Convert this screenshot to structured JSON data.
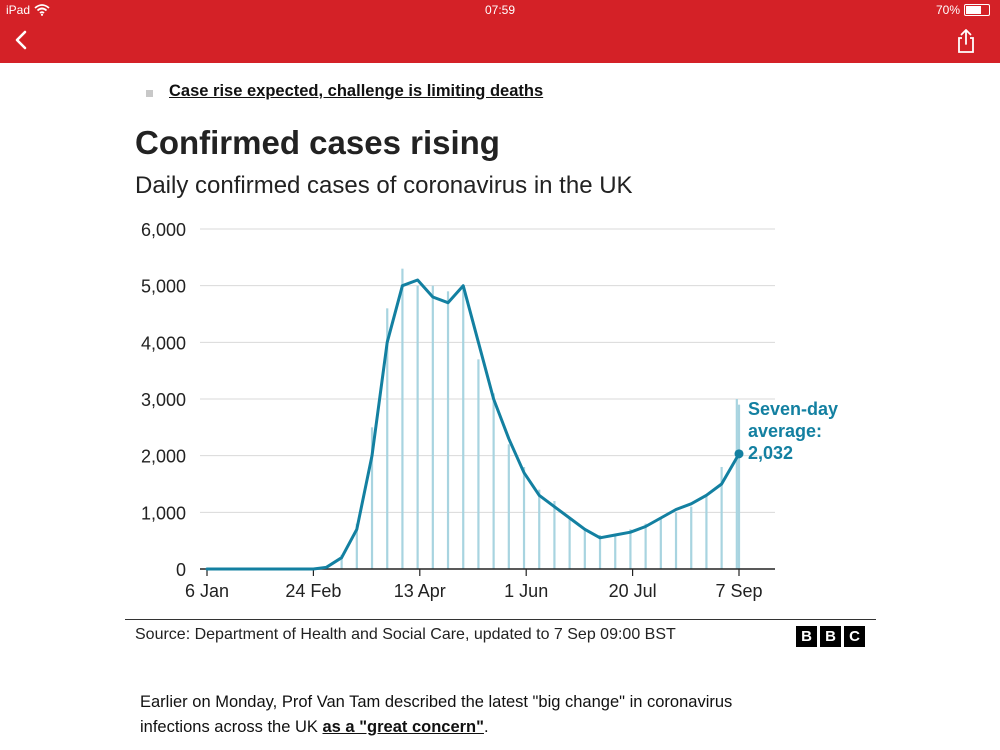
{
  "status_bar": {
    "device": "iPad",
    "time": "07:59",
    "battery": "70%",
    "battery_level": 0.7
  },
  "colors": {
    "nav": "#d42127",
    "series": "#1380a1",
    "bars": "#a8d4e0",
    "grid": "#d9d9d9"
  },
  "nav": {
    "back_icon": "chevron-left-icon",
    "share_icon": "share-icon"
  },
  "bullet_link": "Case rise expected, challenge is limiting deaths",
  "chart": {
    "title": "Confirmed cases rising",
    "subtitle": "Daily confirmed cases of coronavirus in the UK",
    "source": "Source: Department of Health and Social Care, updated to 7 Sep 09:00 BST",
    "annotation": [
      "Seven-day",
      "average:",
      "2,032"
    ]
  },
  "bbc_logo": [
    "B",
    "B",
    "C"
  ],
  "chart_data": {
    "type": "bar",
    "title": "Confirmed cases rising",
    "subtitle": "Daily confirmed cases of coronavirus in the UK",
    "x_ticks": [
      "6 Jan",
      "24 Feb",
      "13 Apr",
      "1 Jun",
      "20 Jul",
      "7 Sep"
    ],
    "x_range": [
      "2020-01-06",
      "2020-09-07"
    ],
    "y_ticks": [
      "0",
      "1,000",
      "2,000",
      "3,000",
      "4,000",
      "5,000",
      "6,000"
    ],
    "ylim": [
      0,
      6000
    ],
    "grid": true,
    "series": [
      {
        "type": "bar",
        "x": [
          "2020-02-24",
          "2020-03-01",
          "2020-03-08",
          "2020-03-15",
          "2020-03-22",
          "2020-03-29",
          "2020-04-05",
          "2020-04-12",
          "2020-04-19",
          "2020-04-26",
          "2020-05-03",
          "2020-05-10",
          "2020-05-17",
          "2020-05-24",
          "2020-05-31",
          "2020-06-07",
          "2020-06-14",
          "2020-06-21",
          "2020-06-28",
          "2020-07-05",
          "2020-07-12",
          "2020-07-19",
          "2020-07-26",
          "2020-08-02",
          "2020-08-09",
          "2020-08-16",
          "2020-08-23",
          "2020-08-30",
          "2020-09-06",
          "2020-09-07"
        ],
        "values": [
          0,
          30,
          250,
          800,
          2500,
          4600,
          5300,
          5000,
          5000,
          4900,
          5000,
          3700,
          3100,
          2200,
          1800,
          1400,
          1200,
          900,
          700,
          600,
          600,
          700,
          800,
          900,
          1000,
          1100,
          1300,
          1800,
          3000,
          2900
        ]
      },
      {
        "name": "Seven-day average",
        "type": "line",
        "x": [
          "2020-01-06",
          "2020-02-24",
          "2020-03-01",
          "2020-03-08",
          "2020-03-15",
          "2020-03-22",
          "2020-03-29",
          "2020-04-05",
          "2020-04-12",
          "2020-04-19",
          "2020-04-26",
          "2020-05-03",
          "2020-05-10",
          "2020-05-17",
          "2020-05-24",
          "2020-05-31",
          "2020-06-07",
          "2020-06-14",
          "2020-06-21",
          "2020-06-28",
          "2020-07-05",
          "2020-07-12",
          "2020-07-19",
          "2020-07-26",
          "2020-08-02",
          "2020-08-09",
          "2020-08-16",
          "2020-08-23",
          "2020-08-30",
          "2020-09-07"
        ],
        "values": [
          0,
          0,
          30,
          200,
          700,
          2000,
          4000,
          5000,
          5100,
          4800,
          4700,
          5000,
          4000,
          3000,
          2300,
          1700,
          1300,
          1100,
          900,
          700,
          550,
          600,
          650,
          750,
          900,
          1050,
          1150,
          1300,
          1500,
          2032
        ]
      }
    ],
    "annotation": "Seven-day average: 2,032"
  },
  "article": {
    "text": "Earlier on Monday, Prof Van Tam described the latest \"big change\" in coronavirus infections across the UK ",
    "link": "as a \"great concern\"",
    "suffix": "."
  }
}
